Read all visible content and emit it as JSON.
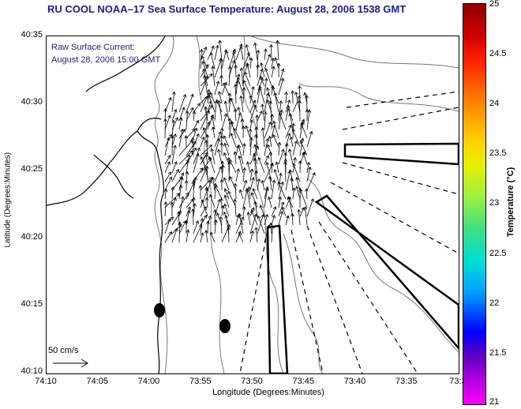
{
  "title": "RU COOL  NOAA–17  Sea Surface Temperature:  August 28, 2006 1538 GMT",
  "notes": {
    "line1": "Raw Surface Current:",
    "line2": "August 28, 2006 15:00 GMT"
  },
  "axes": {
    "ylabel": "Latitude (Degrees:Minutes)",
    "xlabel": "Longitude (Degrees:Minutes)",
    "yticks": [
      "40:35",
      "40:30",
      "40:25",
      "40:20",
      "40:15",
      "40:10"
    ],
    "xticks": [
      "74:10",
      "74:05",
      "74:00",
      "73:55",
      "73:50",
      "73:45",
      "73:40",
      "73:35",
      "73:3"
    ]
  },
  "colorbar": {
    "label": "Temperature (°C)",
    "ticks": [
      "25",
      "24.5",
      "24",
      "23.5",
      "23",
      "22.5",
      "22",
      "21.5",
      "21"
    ]
  },
  "scale": {
    "label": "50 cm/s"
  }
}
